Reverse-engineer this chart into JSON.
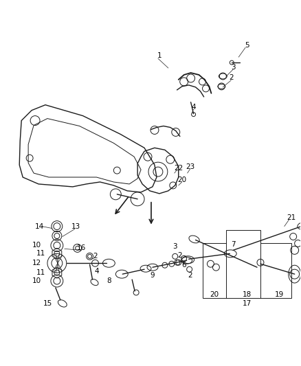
{
  "background_color": "#ffffff",
  "line_color": "#1a1a1a",
  "figsize": [
    4.38,
    5.33
  ],
  "dpi": 100,
  "gray": "#888888",
  "darkgray": "#555555"
}
